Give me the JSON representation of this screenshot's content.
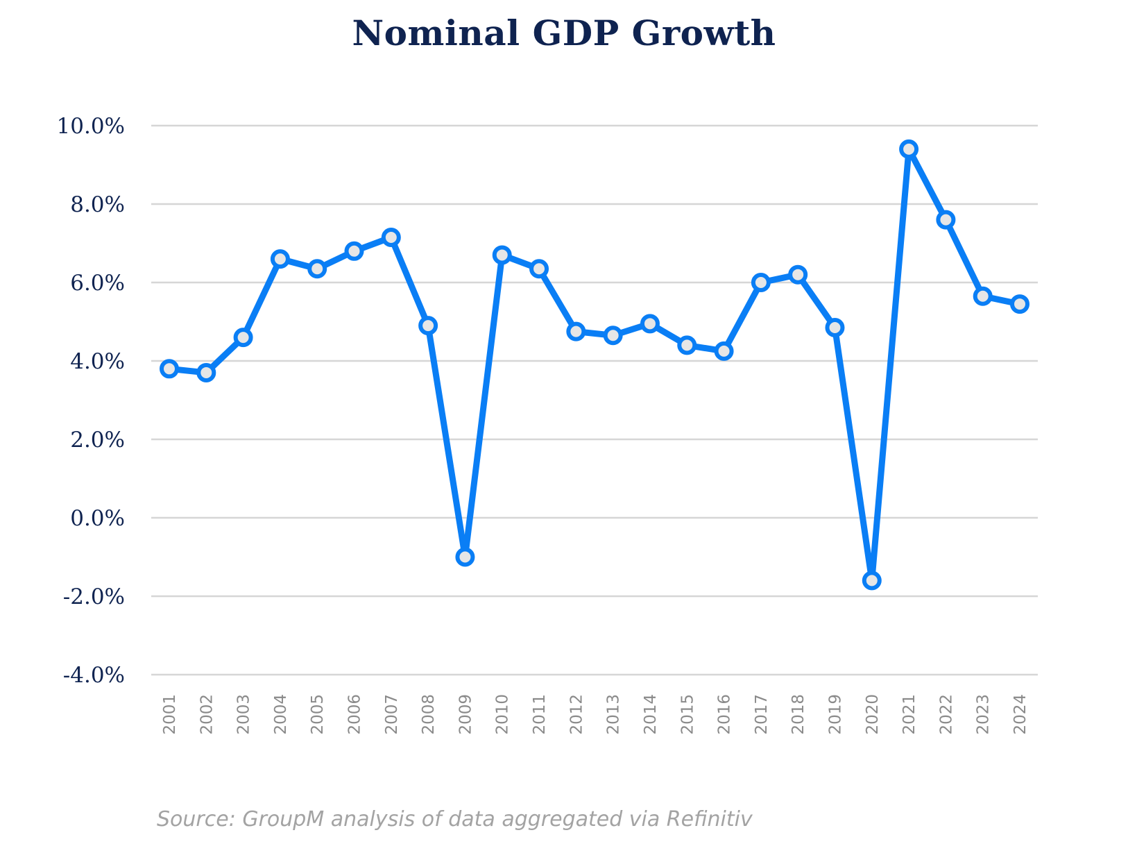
{
  "chart_data": {
    "type": "line",
    "title": "Nominal GDP Growth",
    "source": "Source: GroupM analysis of data aggregated via Refinitiv",
    "x": [
      "2001",
      "2002",
      "2003",
      "2004",
      "2005",
      "2006",
      "2007",
      "2008",
      "2009",
      "2010",
      "2011",
      "2012",
      "2013",
      "2014",
      "2015",
      "2016",
      "2017",
      "2018",
      "2019",
      "2020",
      "2021",
      "2022",
      "2023",
      "2024"
    ],
    "y": [
      3.8,
      3.7,
      4.6,
      6.6,
      6.35,
      6.8,
      7.15,
      4.9,
      -1.0,
      6.7,
      6.35,
      4.75,
      4.65,
      4.95,
      4.4,
      4.25,
      6.0,
      6.2,
      4.85,
      -1.6,
      9.4,
      7.6,
      5.65,
      5.45
    ],
    "yticks": [
      "10.0%",
      "8.0%",
      "6.0%",
      "4.0%",
      "2.0%",
      "0.0%",
      "-2.0%",
      "-4.0%"
    ],
    "ylim": [
      -4,
      10
    ],
    "grid": true,
    "colors": {
      "line": "#0a7ef5",
      "marker_fill": "#e6e6e6",
      "grid": "#d6d6d6",
      "title": "#0f2350"
    }
  }
}
